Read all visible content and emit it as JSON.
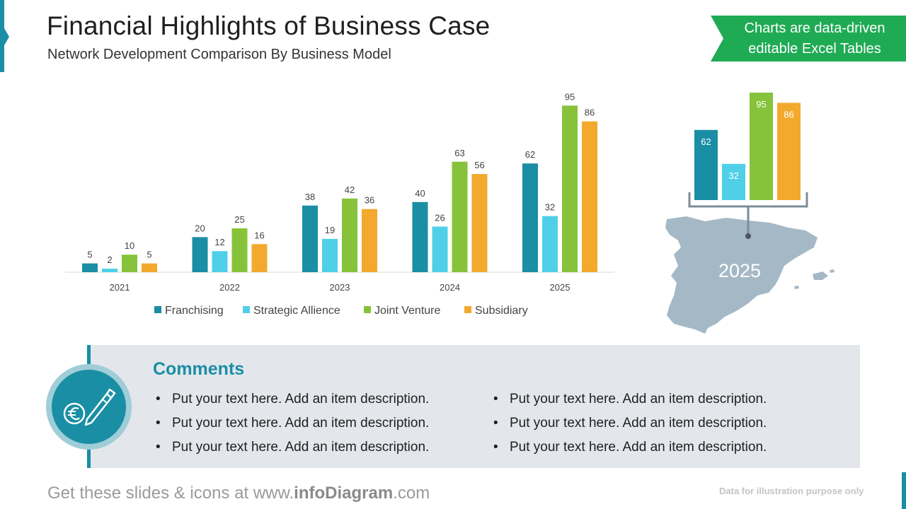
{
  "header": {
    "title": "Financial Highlights of Business Case",
    "subtitle": "Network Development Comparison By Business Model"
  },
  "ribbon": {
    "line1": "Charts are data-driven",
    "line2": "editable Excel Tables"
  },
  "colors": {
    "accent": "#1a8ea4",
    "ribbon": "#1fab54",
    "franchising": "#1a8ea4",
    "strategic": "#4fd0e8",
    "joint": "#86c33a",
    "subsidiary": "#f3a92e",
    "map": "#a5b8c6"
  },
  "chart_data": [
    {
      "type": "bar",
      "categories": [
        "2021",
        "2022",
        "2023",
        "2024",
        "2025"
      ],
      "series": [
        {
          "name": "Franchising",
          "values": [
            5,
            20,
            38,
            40,
            62
          ]
        },
        {
          "name": "Strategic Allience",
          "values": [
            2,
            12,
            19,
            26,
            32
          ]
        },
        {
          "name": "Joint Venture",
          "values": [
            10,
            25,
            42,
            63,
            95
          ]
        },
        {
          "name": "Subsidiary",
          "values": [
            5,
            16,
            36,
            56,
            86
          ]
        }
      ],
      "ylim": [
        0,
        100
      ],
      "grid": false,
      "legend_position": "bottom"
    },
    {
      "type": "bar",
      "categories": [
        "2025"
      ],
      "series": [
        {
          "name": "Franchising",
          "values": [
            62
          ]
        },
        {
          "name": "Strategic Allience",
          "values": [
            32
          ]
        },
        {
          "name": "Joint Venture",
          "values": [
            95
          ]
        },
        {
          "name": "Subsidiary",
          "values": [
            86
          ]
        }
      ],
      "ylim": [
        0,
        100
      ]
    }
  ],
  "map": {
    "region_icon": "spain-map-icon",
    "label": "2025"
  },
  "comments": {
    "title": "Comments",
    "icon": "euro-pen-icon",
    "left": [
      "Put your text here. Add an item description.",
      "Put your text here. Add an item description.",
      "Put your text here. Add an item description."
    ],
    "right": [
      "Put your text here. Add an item description.",
      "Put your text here. Add an item description.",
      "Put your text here. Add an item description."
    ]
  },
  "footer": {
    "prefix": "Get these slides & icons at www.",
    "brand": "infoDiagram",
    "suffix": ".com",
    "disclaimer": "Data for illustration purpose only"
  }
}
